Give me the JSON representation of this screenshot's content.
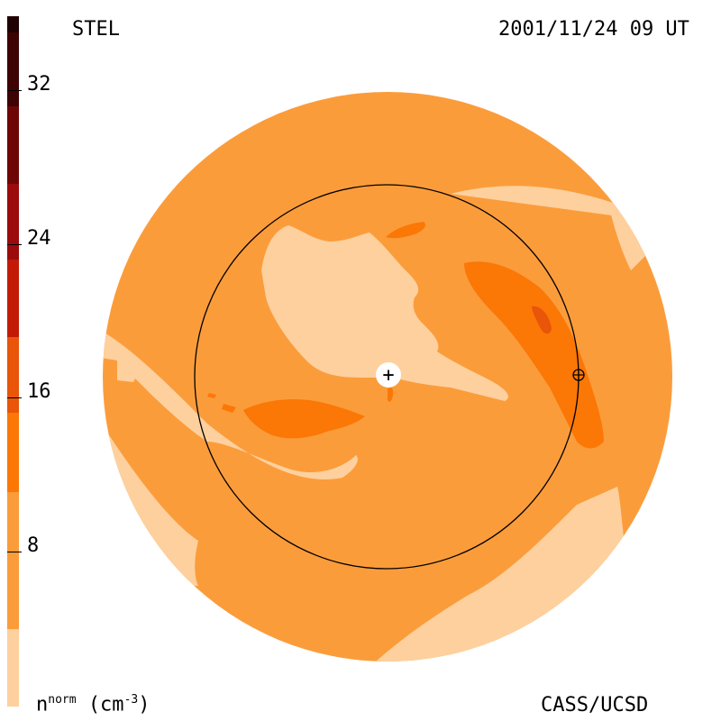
{
  "header": {
    "left_label": "STEL",
    "right_label": "2001/11/24 09 UT"
  },
  "footer": {
    "left_label_base": "n",
    "left_label_sup": "norm",
    "left_label_unit": "(cm",
    "left_label_unit_sup": "-3",
    "left_label_close": ")",
    "right_label": "CASS/UCSD"
  },
  "colorbar": {
    "tick_labels": [
      "32",
      "24",
      "16",
      "8"
    ],
    "colors": [
      "#fdd09e",
      "#fb9c3b",
      "#fb7706",
      "#e95509",
      "#c31a08",
      "#9b0b0b",
      "#6e0606",
      "#3e0404",
      "#1f0202"
    ]
  },
  "markers": {
    "center_marker": "+"
  },
  "colors": {
    "light": "#fdd09e",
    "base": "#fb9c3b",
    "medium": "#fb7706",
    "dark": "#e95509",
    "line": "#000000"
  }
}
